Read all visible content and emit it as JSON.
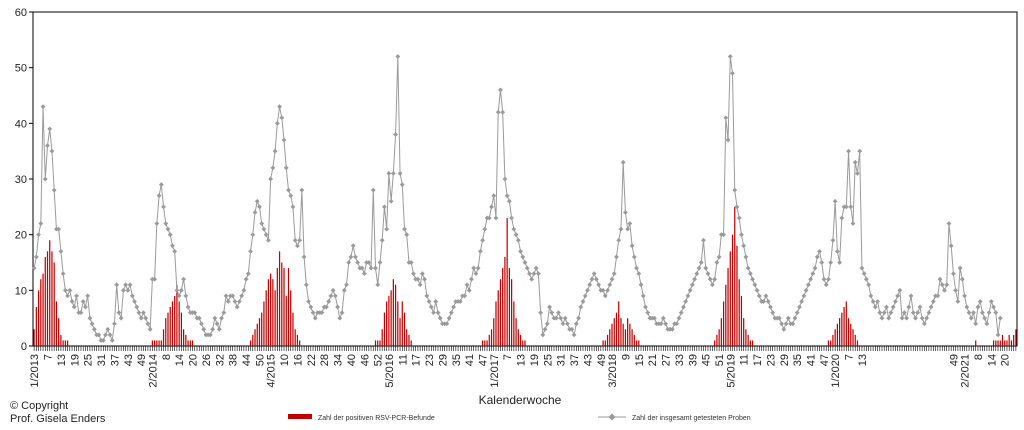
{
  "chart_data": {
    "type": "bar+line",
    "xlabel": "Kalenderwoche",
    "ylim": [
      0,
      60
    ],
    "yticks": [
      0,
      10,
      20,
      30,
      40,
      50,
      60
    ],
    "grid": false,
    "x_tick_labels": [
      {
        "i": 0,
        "label": "1/2013"
      },
      {
        "i": 6,
        "label": "7"
      },
      {
        "i": 12,
        "label": "13"
      },
      {
        "i": 18,
        "label": "19"
      },
      {
        "i": 24,
        "label": "25"
      },
      {
        "i": 30,
        "label": "31"
      },
      {
        "i": 36,
        "label": "37"
      },
      {
        "i": 42,
        "label": "43"
      },
      {
        "i": 48,
        "label": "49"
      },
      {
        "i": 53,
        "label": "2/2014"
      },
      {
        "i": 59,
        "label": "8"
      },
      {
        "i": 65,
        "label": "14"
      },
      {
        "i": 71,
        "label": "20"
      },
      {
        "i": 77,
        "label": "26"
      },
      {
        "i": 83,
        "label": "32"
      },
      {
        "i": 89,
        "label": "38"
      },
      {
        "i": 95,
        "label": "44"
      },
      {
        "i": 101,
        "label": "50"
      },
      {
        "i": 106,
        "label": "4/2015"
      },
      {
        "i": 112,
        "label": "10"
      },
      {
        "i": 118,
        "label": "16"
      },
      {
        "i": 124,
        "label": "22"
      },
      {
        "i": 130,
        "label": "28"
      },
      {
        "i": 136,
        "label": "34"
      },
      {
        "i": 142,
        "label": "40"
      },
      {
        "i": 148,
        "label": "46"
      },
      {
        "i": 154,
        "label": "52"
      },
      {
        "i": 159,
        "label": "5/2016"
      },
      {
        "i": 165,
        "label": "11"
      },
      {
        "i": 171,
        "label": "17"
      },
      {
        "i": 177,
        "label": "23"
      },
      {
        "i": 183,
        "label": "29"
      },
      {
        "i": 189,
        "label": "35"
      },
      {
        "i": 195,
        "label": "41"
      },
      {
        "i": 201,
        "label": "47"
      },
      {
        "i": 206,
        "label": "1/2017"
      },
      {
        "i": 212,
        "label": "7"
      },
      {
        "i": 218,
        "label": "13"
      },
      {
        "i": 224,
        "label": "19"
      },
      {
        "i": 230,
        "label": "25"
      },
      {
        "i": 236,
        "label": "31"
      },
      {
        "i": 242,
        "label": "37"
      },
      {
        "i": 248,
        "label": "43"
      },
      {
        "i": 254,
        "label": "49"
      },
      {
        "i": 259,
        "label": "3/2018"
      },
      {
        "i": 265,
        "label": "9"
      },
      {
        "i": 271,
        "label": "15"
      },
      {
        "i": 277,
        "label": "21"
      },
      {
        "i": 283,
        "label": "27"
      },
      {
        "i": 289,
        "label": "33"
      },
      {
        "i": 295,
        "label": "39"
      },
      {
        "i": 301,
        "label": "45"
      },
      {
        "i": 307,
        "label": "51"
      },
      {
        "i": 312,
        "label": "5/2019"
      },
      {
        "i": 318,
        "label": "11"
      },
      {
        "i": 324,
        "label": "17"
      },
      {
        "i": 330,
        "label": "23"
      },
      {
        "i": 336,
        "label": "29"
      },
      {
        "i": 342,
        "label": "35"
      },
      {
        "i": 348,
        "label": "41"
      },
      {
        "i": 354,
        "label": "47"
      },
      {
        "i": 359,
        "label": "1/2020"
      },
      {
        "i": 365,
        "label": "7"
      },
      {
        "i": 371,
        "label": "13"
      },
      {
        "i": 412,
        "label": "49"
      },
      {
        "i": 417,
        "label": "2/2021"
      },
      {
        "i": 423,
        "label": "8"
      },
      {
        "i": 429,
        "label": "14"
      },
      {
        "i": 435,
        "label": "20"
      }
    ],
    "series": [
      {
        "name": "Zahl der positiven RSV-PCR-Befunde",
        "kind": "bar",
        "color": "#c00000",
        "values": [
          3,
          7,
          10,
          12,
          13,
          16,
          17,
          19,
          17,
          15,
          8,
          5,
          2,
          1,
          1,
          1,
          0,
          0,
          0,
          0,
          0,
          0,
          0,
          0,
          0,
          0,
          0,
          0,
          0,
          0,
          0,
          0,
          0,
          0,
          0,
          0,
          0,
          0,
          0,
          0,
          0,
          0,
          0,
          0,
          0,
          0,
          0,
          0,
          0,
          0,
          0,
          0,
          0,
          1,
          1,
          1,
          1,
          1,
          3,
          5,
          6,
          7,
          8,
          9,
          11,
          8,
          6,
          3,
          2,
          1,
          1,
          1,
          0,
          0,
          0,
          0,
          0,
          0,
          0,
          0,
          0,
          0,
          0,
          0,
          0,
          0,
          0,
          0,
          0,
          0,
          0,
          0,
          0,
          0,
          0,
          0,
          0,
          1,
          2,
          3,
          4,
          5,
          6,
          8,
          10,
          12,
          13,
          12,
          10,
          14,
          17,
          15,
          14,
          9,
          14,
          10,
          6,
          3,
          2,
          1,
          0,
          0,
          0,
          0,
          0,
          0,
          0,
          0,
          0,
          0,
          0,
          0,
          0,
          0,
          0,
          0,
          0,
          0,
          0,
          0,
          0,
          0,
          0,
          0,
          0,
          0,
          0,
          0,
          0,
          0,
          0,
          0,
          0,
          1,
          1,
          1,
          3,
          6,
          8,
          9,
          10,
          12,
          11,
          8,
          5,
          8,
          6,
          3,
          2,
          1,
          0,
          0,
          0,
          0,
          0,
          0,
          0,
          0,
          0,
          0,
          0,
          0,
          0,
          0,
          0,
          0,
          0,
          0,
          0,
          0,
          0,
          0,
          0,
          0,
          0,
          0,
          0,
          0,
          0,
          0,
          0,
          1,
          1,
          1,
          2,
          3,
          5,
          8,
          10,
          12,
          14,
          16,
          23,
          14,
          12,
          8,
          5,
          3,
          2,
          1,
          1,
          0,
          0,
          0,
          0,
          0,
          0,
          0,
          0,
          0,
          0,
          0,
          0,
          0,
          0,
          0,
          0,
          0,
          0,
          0,
          0,
          0,
          0,
          0,
          0,
          0,
          0,
          0,
          0,
          0,
          0,
          0,
          0,
          0,
          0,
          1,
          1,
          2,
          3,
          4,
          5,
          6,
          8,
          5,
          4,
          3,
          5,
          4,
          3,
          2,
          1,
          1,
          0,
          0,
          0,
          0,
          0,
          0,
          0,
          0,
          0,
          0,
          0,
          0,
          0,
          0,
          0,
          0,
          0,
          0,
          0,
          0,
          0,
          0,
          0,
          0,
          0,
          0,
          0,
          0,
          0,
          0,
          0,
          0,
          0,
          1,
          2,
          3,
          5,
          8,
          11,
          14,
          17,
          20,
          25,
          18,
          12,
          9,
          5,
          3,
          2,
          1,
          1,
          0,
          0,
          0,
          0,
          0,
          0,
          0,
          0,
          0,
          0,
          0,
          0,
          0,
          0,
          0,
          0,
          0,
          0,
          0,
          0,
          0,
          0,
          0,
          0,
          0,
          0,
          0,
          0,
          0,
          0,
          0,
          0,
          0,
          1,
          1,
          2,
          3,
          4,
          5,
          6,
          7,
          8,
          5,
          4,
          3,
          2,
          1,
          0,
          0,
          0,
          0,
          0,
          0,
          0,
          0,
          0,
          0,
          0,
          0,
          0,
          0,
          0,
          0,
          0,
          0,
          0,
          0,
          0,
          0,
          0,
          0,
          0,
          0,
          0,
          0,
          0,
          0,
          0,
          0,
          0,
          0,
          0,
          0,
          0,
          0,
          0,
          0,
          0,
          0,
          0,
          0,
          0,
          0,
          0,
          0,
          0,
          0,
          0,
          0,
          1,
          0,
          0,
          0,
          0,
          0,
          0,
          0,
          1,
          1,
          1,
          1,
          2,
          1,
          1,
          2,
          1,
          2,
          3
        ]
      },
      {
        "name": "Zahl der insgesamt getesteten Proben",
        "kind": "line",
        "color": "#9a9a9a",
        "values": [
          14,
          16,
          20,
          22,
          43,
          30,
          36,
          39,
          35,
          28,
          21,
          21,
          17,
          13,
          10,
          9,
          10,
          8,
          7,
          9,
          6,
          6,
          8,
          7,
          9,
          5,
          4,
          3,
          2,
          2,
          1,
          1,
          2,
          3,
          2,
          1,
          4,
          11,
          6,
          5,
          10,
          11,
          10,
          11,
          9,
          8,
          7,
          6,
          5,
          6,
          5,
          4,
          3,
          12,
          12,
          22,
          27,
          29,
          25,
          22,
          21,
          20,
          18,
          17,
          10,
          9,
          10,
          12,
          9,
          7,
          6,
          6,
          6,
          5,
          5,
          4,
          3,
          2,
          2,
          2,
          3,
          5,
          4,
          3,
          5,
          6,
          9,
          8,
          9,
          9,
          8,
          7,
          8,
          9,
          10,
          12,
          13,
          17,
          20,
          24,
          26,
          25,
          22,
          21,
          20,
          19,
          30,
          32,
          35,
          40,
          43,
          41,
          37,
          32,
          28,
          27,
          25,
          19,
          18,
          19,
          28,
          16,
          11,
          8,
          7,
          6,
          5,
          6,
          6,
          6,
          7,
          7,
          8,
          9,
          10,
          9,
          7,
          5,
          6,
          10,
          11,
          15,
          16,
          18,
          16,
          15,
          14,
          14,
          13,
          15,
          15,
          14,
          28,
          14,
          11,
          15,
          19,
          25,
          21,
          31,
          26,
          31,
          38,
          52,
          31,
          29,
          21,
          20,
          15,
          15,
          13,
          12,
          12,
          11,
          13,
          12,
          9,
          8,
          7,
          6,
          8,
          6,
          5,
          4,
          4,
          4,
          5,
          6,
          7,
          8,
          8,
          8,
          9,
          9,
          11,
          10,
          12,
          14,
          13,
          14,
          17,
          19,
          21,
          23,
          23,
          25,
          27,
          23,
          42,
          46,
          42,
          30,
          27,
          26,
          23,
          21,
          20,
          19,
          17,
          16,
          15,
          14,
          13,
          12,
          13,
          14,
          13,
          6,
          2,
          3,
          4,
          7,
          6,
          5,
          5,
          6,
          5,
          4,
          5,
          4,
          3,
          3,
          2,
          4,
          5,
          7,
          8,
          9,
          10,
          11,
          12,
          13,
          12,
          11,
          10,
          10,
          9,
          10,
          11,
          12,
          13,
          16,
          19,
          21,
          33,
          24,
          21,
          22,
          18,
          16,
          14,
          13,
          11,
          9,
          7,
          6,
          5,
          5,
          5,
          4,
          4,
          4,
          5,
          4,
          3,
          3,
          3,
          4,
          4,
          5,
          6,
          7,
          8,
          9,
          10,
          11,
          12,
          13,
          14,
          15,
          19,
          14,
          13,
          12,
          11,
          12,
          15,
          16,
          20,
          20,
          41,
          37,
          52,
          49,
          28,
          25,
          23,
          20,
          18,
          16,
          14,
          13,
          12,
          11,
          10,
          9,
          8,
          8,
          9,
          8,
          7,
          6,
          5,
          5,
          5,
          4,
          3,
          4,
          5,
          4,
          4,
          5,
          6,
          7,
          8,
          9,
          10,
          11,
          12,
          13,
          14,
          16,
          17,
          15,
          12,
          11,
          12,
          15,
          19,
          26,
          17,
          15,
          23,
          25,
          25,
          35,
          25,
          22,
          33,
          31,
          35,
          14,
          13,
          12,
          11,
          9,
          8,
          7,
          8,
          6,
          5,
          6,
          7,
          5,
          6,
          7,
          8,
          9,
          10,
          5,
          6,
          5,
          7,
          9,
          6,
          5,
          6,
          7,
          5,
          4,
          5,
          6,
          7,
          8,
          9,
          9,
          12,
          11,
          10,
          11,
          22,
          18,
          13,
          10,
          8,
          14,
          12,
          9,
          7,
          6,
          5,
          6,
          4,
          7,
          8,
          6,
          5,
          4,
          6,
          8,
          7,
          6,
          2,
          5
        ]
      }
    ],
    "legend": [
      {
        "label": "Zahl der positiven RSV-PCR-Befunde",
        "kind": "bar",
        "color": "#c00000"
      },
      {
        "label": "Zahl der insgesamt getesteten Proben",
        "kind": "line",
        "color": "#9a9a9a"
      }
    ],
    "legend_position": "bottom"
  },
  "copyright": {
    "line1": "© Copyright",
    "line2": "Prof. Gisela Enders"
  }
}
